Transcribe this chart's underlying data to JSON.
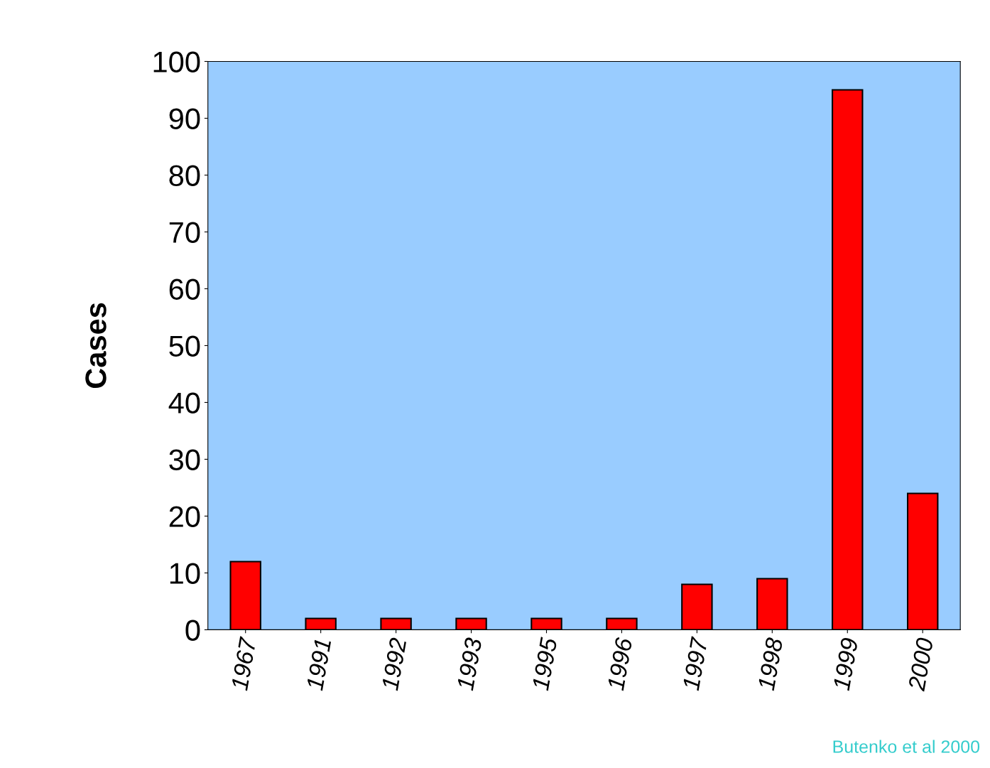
{
  "chart_data": {
    "type": "bar",
    "ylabel": "Cases",
    "categories": [
      "1967",
      "1991",
      "1992",
      "1993",
      "1995",
      "1996",
      "1997",
      "1998",
      "1999",
      "2000"
    ],
    "values": [
      12,
      2,
      2,
      2,
      2,
      2,
      8,
      9,
      95,
      24
    ],
    "color": "#ff0000",
    "ylim": [
      0,
      100
    ],
    "yticks": [
      0,
      10,
      20,
      30,
      40,
      50,
      60,
      70,
      80,
      90,
      100
    ],
    "grid": false,
    "legend": false,
    "annotations": [
      "Butenko et al 2000"
    ]
  }
}
